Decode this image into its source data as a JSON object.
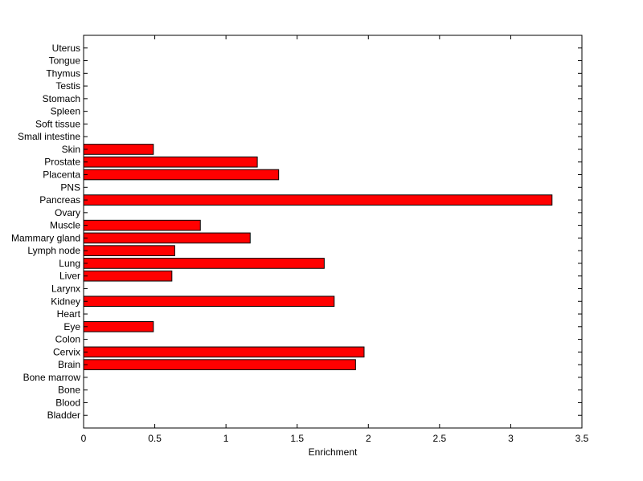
{
  "chart_data": {
    "type": "bar",
    "orientation": "horizontal",
    "title": "",
    "xlabel": "Enrichment",
    "ylabel": "",
    "xlim": [
      0,
      3.5
    ],
    "xticks": [
      "0",
      "0.5",
      "1",
      "1.5",
      "2",
      "2.5",
      "3",
      "3.5"
    ],
    "grid": false,
    "bar_color": "#ff0000",
    "bar_edge_color": "#000000",
    "categories": [
      "Bladder",
      "Blood",
      "Bone",
      "Bone marrow",
      "Brain",
      "Cervix",
      "Colon",
      "Eye",
      "Heart",
      "Kidney",
      "Larynx",
      "Liver",
      "Lung",
      "Lymph node",
      "Mammary gland",
      "Muscle",
      "Ovary",
      "Pancreas",
      "PNS",
      "Placenta",
      "Prostate",
      "Skin",
      "Small intestine",
      "Soft tissue",
      "Spleen",
      "Stomach",
      "Testis",
      "Thymus",
      "Tongue",
      "Uterus"
    ],
    "values": [
      0,
      0,
      0,
      0,
      1.91,
      1.97,
      0,
      0.49,
      0,
      1.76,
      0,
      0.62,
      1.69,
      0.64,
      1.17,
      0.82,
      0,
      3.29,
      0,
      1.37,
      1.22,
      0.49,
      0,
      0,
      0,
      0,
      0,
      0,
      0,
      0
    ]
  }
}
